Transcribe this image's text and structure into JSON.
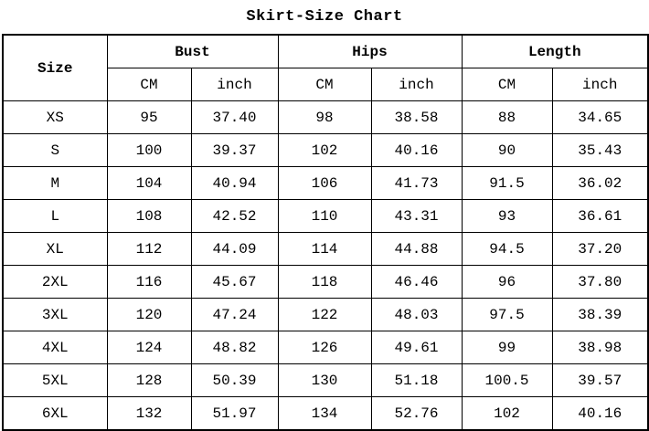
{
  "title": "Skirt-Size Chart",
  "colors": {
    "border": "#000000",
    "text": "#000000",
    "background": "#ffffff"
  },
  "table": {
    "corner_header": "Size",
    "groups": [
      {
        "label": "Bust"
      },
      {
        "label": "Hips"
      },
      {
        "label": "Length"
      }
    ],
    "unit_headers": {
      "cm": "CM",
      "inch": "inch"
    }
  },
  "chart_data": {
    "type": "table",
    "title": "Skirt-Size Chart",
    "columns": [
      "Size",
      "Bust CM",
      "Bust inch",
      "Hips CM",
      "Hips inch",
      "Length CM",
      "Length inch"
    ],
    "rows": [
      [
        "XS",
        "95",
        "37.40",
        "98",
        "38.58",
        "88",
        "34.65"
      ],
      [
        "S",
        "100",
        "39.37",
        "102",
        "40.16",
        "90",
        "35.43"
      ],
      [
        "M",
        "104",
        "40.94",
        "106",
        "41.73",
        "91.5",
        "36.02"
      ],
      [
        "L",
        "108",
        "42.52",
        "110",
        "43.31",
        "93",
        "36.61"
      ],
      [
        "XL",
        "112",
        "44.09",
        "114",
        "44.88",
        "94.5",
        "37.20"
      ],
      [
        "2XL",
        "116",
        "45.67",
        "118",
        "46.46",
        "96",
        "37.80"
      ],
      [
        "3XL",
        "120",
        "47.24",
        "122",
        "48.03",
        "97.5",
        "38.39"
      ],
      [
        "4XL",
        "124",
        "48.82",
        "126",
        "49.61",
        "99",
        "38.98"
      ],
      [
        "5XL",
        "128",
        "50.39",
        "130",
        "51.18",
        "100.5",
        "39.57"
      ],
      [
        "6XL",
        "132",
        "51.97",
        "134",
        "52.76",
        "102",
        "40.16"
      ]
    ]
  }
}
